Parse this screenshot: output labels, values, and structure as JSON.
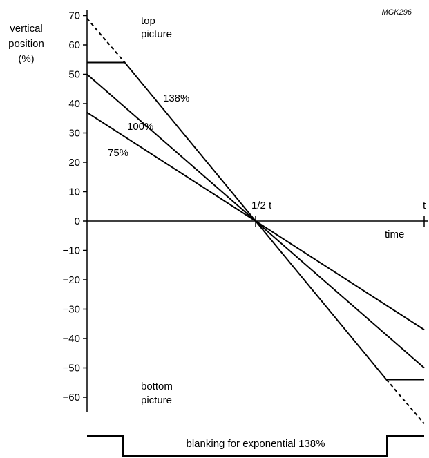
{
  "figure_code": "MGK296",
  "ylabel": [
    "vertical",
    "position",
    "(%)"
  ],
  "top_label": [
    "top",
    "picture"
  ],
  "bottom_label": [
    "bottom",
    "picture"
  ],
  "xlabel": "time",
  "midpoint_label": "1/2 t",
  "end_label": "t",
  "blanking_label": "blanking for exponential 138%",
  "chart_data": {
    "type": "line",
    "title": "",
    "xlabel": "time",
    "ylabel": "vertical position (%)",
    "xlim": [
      0,
      1
    ],
    "ylim": [
      -65,
      72
    ],
    "y_ticks": [
      70,
      60,
      50,
      40,
      30,
      20,
      10,
      0,
      -10,
      -20,
      -30,
      -40,
      -50,
      -60
    ],
    "y_tick_labels": [
      "70",
      "60",
      "50",
      "40",
      "30",
      "20",
      "10",
      "0",
      "−10",
      "−20",
      "−30",
      "−40",
      "−50",
      "−60"
    ],
    "grid": false,
    "series": [
      {
        "name": "138%",
        "x": [
          0,
          0.112,
          0.5,
          0.888,
          1
        ],
        "y": [
          54,
          54,
          0,
          -54,
          -54
        ],
        "dashed_extensions": {
          "x": [
            [
              0,
              0.112
            ],
            [
              0.888,
              1
            ]
          ],
          "y": [
            [
              69,
              54
            ],
            [
              -54,
              -69
            ]
          ]
        }
      },
      {
        "name": "100%",
        "x": [
          0,
          0.5,
          1
        ],
        "y": [
          50,
          0,
          -50
        ]
      },
      {
        "name": "75%",
        "x": [
          0,
          0.5,
          1
        ],
        "y": [
          37,
          0,
          -37
        ]
      }
    ],
    "blanking": {
      "label": "blanking for exponential 138%",
      "x_start": 0.112,
      "x_end": 0.888
    }
  }
}
